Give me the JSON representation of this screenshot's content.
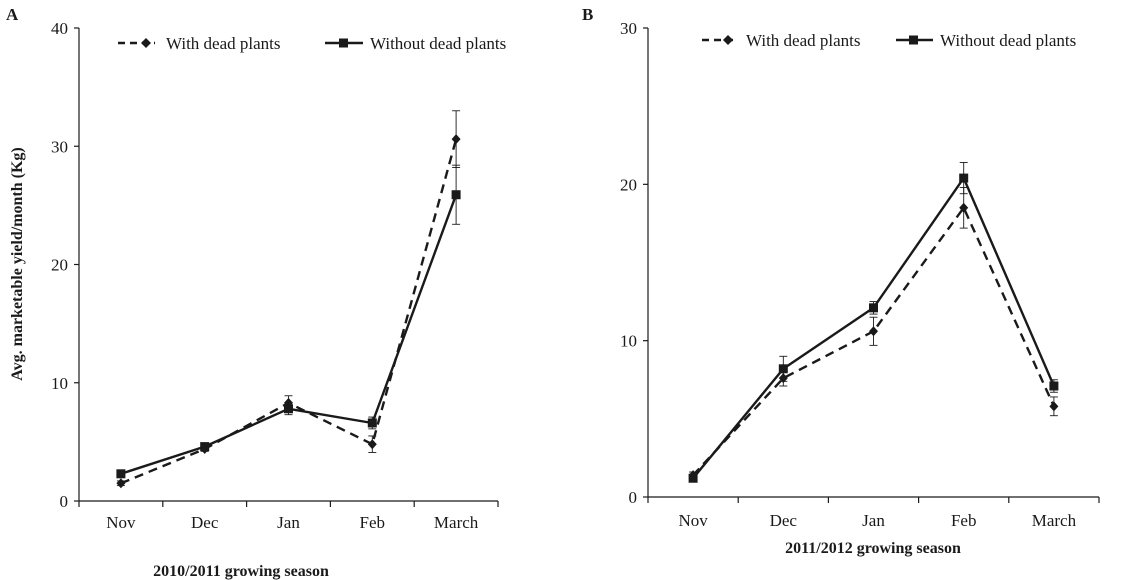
{
  "chart_data": [
    {
      "type": "line",
      "panel_label": "A",
      "title": "",
      "xlabel": "2010/2011 growing season",
      "ylabel": "Avg. marketable yield/month (Kg)",
      "categories": [
        "Nov",
        "Dec",
        "Jan",
        "Feb",
        "March"
      ],
      "ylim": [
        0,
        40
      ],
      "yticks": [
        0,
        10,
        20,
        30,
        40
      ],
      "grid": false,
      "legend_position": "top",
      "series": [
        {
          "name": "With dead plants",
          "line_style": "dashed",
          "marker": "diamond",
          "values": [
            1.5,
            4.4,
            8.3,
            4.8,
            30.6
          ],
          "errors": [
            0.2,
            0.2,
            0.6,
            0.7,
            2.4
          ]
        },
        {
          "name": "Without dead plants",
          "line_style": "solid",
          "marker": "square",
          "values": [
            2.3,
            4.6,
            7.8,
            6.6,
            25.9
          ],
          "errors": [
            0.2,
            0.2,
            0.5,
            0.5,
            2.5
          ]
        }
      ]
    },
    {
      "type": "line",
      "panel_label": "B",
      "title": "",
      "xlabel": "2011/2012  growing season",
      "ylabel": "",
      "categories": [
        "Nov",
        "Dec",
        "Jan",
        "Feb",
        "March"
      ],
      "ylim": [
        0,
        30
      ],
      "yticks": [
        0,
        10,
        20,
        30
      ],
      "grid": false,
      "legend_position": "top",
      "series": [
        {
          "name": "With dead plants",
          "line_style": "dashed",
          "marker": "diamond",
          "values": [
            1.4,
            7.6,
            10.6,
            18.5,
            5.8
          ],
          "errors": [
            0.2,
            0.5,
            0.9,
            1.3,
            0.6
          ]
        },
        {
          "name": "Without dead plants",
          "line_style": "solid",
          "marker": "square",
          "values": [
            1.2,
            8.2,
            12.1,
            20.4,
            7.1
          ],
          "errors": [
            0.2,
            0.8,
            0.4,
            1.0,
            0.4
          ]
        }
      ]
    }
  ]
}
